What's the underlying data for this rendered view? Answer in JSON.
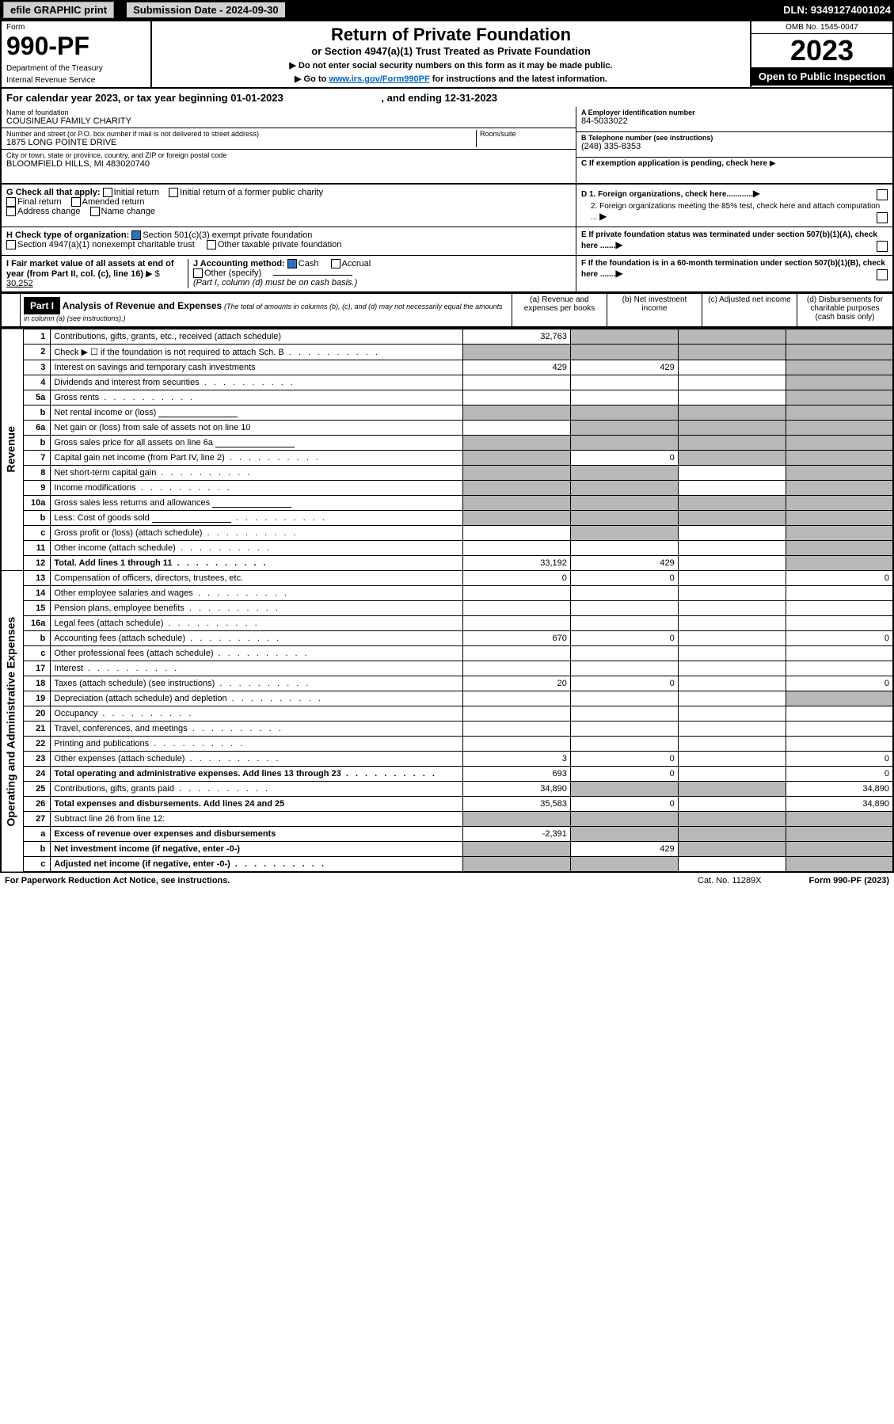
{
  "top_bar": {
    "print": "efile GRAPHIC print",
    "sub_label": "Submission Date - 2024-09-30",
    "dln": "DLN: 93491274001024"
  },
  "header": {
    "form_label": "Form",
    "form_no": "990-PF",
    "dept": "Department of the Treasury",
    "irs": "Internal Revenue Service",
    "title": "Return of Private Foundation",
    "subtitle": "or Section 4947(a)(1) Trust Treated as Private Foundation",
    "note1": "▶ Do not enter social security numbers on this form as it may be made public.",
    "note2_pre": "▶ Go to ",
    "note2_link": "www.irs.gov/Form990PF",
    "note2_post": " for instructions and the latest information.",
    "omb": "OMB No. 1545-0047",
    "year": "2023",
    "open": "Open to Public Inspection"
  },
  "cal_year": {
    "text_pre": "For calendar year 2023, or tax year beginning ",
    "begin": "01-01-2023",
    "text_mid": " , and ending ",
    "end": "12-31-2023"
  },
  "info": {
    "name_label": "Name of foundation",
    "name": "COUSINEAU FAMILY CHARITY",
    "addr_label": "Number and street (or P.O. box number if mail is not delivered to street address)",
    "addr": "1875 LONG POINTE DRIVE",
    "room_label": "Room/suite",
    "city_label": "City or town, state or province, country, and ZIP or foreign postal code",
    "city": "BLOOMFIELD HILLS, MI  483020740",
    "ein_label": "A Employer identification number",
    "ein": "84-5033022",
    "phone_label": "B Telephone number (see instructions)",
    "phone": "(248) 335-8353",
    "c_label": "C If exemption application is pending, check here"
  },
  "section_g": {
    "label": "G Check all that apply:",
    "items": [
      "Initial return",
      "Initial return of a former public charity",
      "Final return",
      "Amended return",
      "Address change",
      "Name change"
    ]
  },
  "section_h": {
    "label": "H Check type of organization:",
    "opt1": "Section 501(c)(3) exempt private foundation",
    "opt2": "Section 4947(a)(1) nonexempt charitable trust",
    "opt3": "Other taxable private foundation"
  },
  "section_i": {
    "label": "I Fair market value of all assets at end of year (from Part II, col. (c), line 16)",
    "val": "30,252"
  },
  "section_j": {
    "label": "J Accounting method:",
    "cash": "Cash",
    "accrual": "Accrual",
    "other": "Other (specify)",
    "note": "(Part I, column (d) must be on cash basis.)"
  },
  "section_d": {
    "d1": "D 1. Foreign organizations, check here............",
    "d2": "2. Foreign organizations meeting the 85% test, check here and attach computation ..."
  },
  "section_e": "E  If private foundation status was terminated under section 507(b)(1)(A), check here .......",
  "section_f": "F  If the foundation is in a 60-month termination under section 507(b)(1)(B), check here .......",
  "part1": {
    "hdr": "Part I",
    "title": "Analysis of Revenue and Expenses",
    "note": "(The total of amounts in columns (b), (c), and (d) may not necessarily equal the amounts in column (a) (see instructions).)",
    "col_a": "(a) Revenue and expenses per books",
    "col_b": "(b) Net investment income",
    "col_c": "(c) Adjusted net income",
    "col_d": "(d) Disbursements for charitable purposes (cash basis only)"
  },
  "side_labels": {
    "revenue": "Revenue",
    "expenses": "Operating and Administrative Expenses"
  },
  "lines": [
    {
      "n": "1",
      "desc": "Contributions, gifts, grants, etc., received (attach schedule)",
      "a": "32,763",
      "b": "",
      "c": "",
      "d": "",
      "shade_b": true,
      "shade_c": true,
      "shade_d": true
    },
    {
      "n": "2",
      "desc": "Check ▶ ☐ if the foundation is not required to attach Sch. B",
      "a": "",
      "b": "",
      "c": "",
      "d": "",
      "shade_a": true,
      "shade_b": true,
      "shade_c": true,
      "shade_d": true,
      "dots": true
    },
    {
      "n": "3",
      "desc": "Interest on savings and temporary cash investments",
      "a": "429",
      "b": "429",
      "c": "",
      "d": "",
      "shade_d": true
    },
    {
      "n": "4",
      "desc": "Dividends and interest from securities",
      "a": "",
      "b": "",
      "c": "",
      "d": "",
      "shade_d": true,
      "dots": true
    },
    {
      "n": "5a",
      "desc": "Gross rents",
      "a": "",
      "b": "",
      "c": "",
      "d": "",
      "shade_d": true,
      "dots": true
    },
    {
      "n": "b",
      "desc": "Net rental income or (loss)",
      "a": "",
      "b": "",
      "c": "",
      "d": "",
      "shade_a": true,
      "shade_b": true,
      "shade_c": true,
      "shade_d": true,
      "inline_blank": true
    },
    {
      "n": "6a",
      "desc": "Net gain or (loss) from sale of assets not on line 10",
      "a": "",
      "b": "",
      "c": "",
      "d": "",
      "shade_b": true,
      "shade_c": true,
      "shade_d": true
    },
    {
      "n": "b",
      "desc": "Gross sales price for all assets on line 6a",
      "a": "",
      "b": "",
      "c": "",
      "d": "",
      "shade_a": true,
      "shade_b": true,
      "shade_c": true,
      "shade_d": true,
      "inline_blank": true
    },
    {
      "n": "7",
      "desc": "Capital gain net income (from Part IV, line 2)",
      "a": "",
      "b": "0",
      "c": "",
      "d": "",
      "shade_a": true,
      "shade_c": true,
      "shade_d": true,
      "dots": true
    },
    {
      "n": "8",
      "desc": "Net short-term capital gain",
      "a": "",
      "b": "",
      "c": "",
      "d": "",
      "shade_a": true,
      "shade_b": true,
      "shade_d": true,
      "dots": true
    },
    {
      "n": "9",
      "desc": "Income modifications",
      "a": "",
      "b": "",
      "c": "",
      "d": "",
      "shade_a": true,
      "shade_b": true,
      "shade_d": true,
      "dots": true
    },
    {
      "n": "10a",
      "desc": "Gross sales less returns and allowances",
      "a": "",
      "b": "",
      "c": "",
      "d": "",
      "shade_a": true,
      "shade_b": true,
      "shade_c": true,
      "shade_d": true,
      "inline_blank": true
    },
    {
      "n": "b",
      "desc": "Less: Cost of goods sold",
      "a": "",
      "b": "",
      "c": "",
      "d": "",
      "shade_a": true,
      "shade_b": true,
      "shade_c": true,
      "shade_d": true,
      "inline_blank": true,
      "dots": true
    },
    {
      "n": "c",
      "desc": "Gross profit or (loss) (attach schedule)",
      "a": "",
      "b": "",
      "c": "",
      "d": "",
      "shade_b": true,
      "shade_d": true,
      "dots": true
    },
    {
      "n": "11",
      "desc": "Other income (attach schedule)",
      "a": "",
      "b": "",
      "c": "",
      "d": "",
      "shade_d": true,
      "dots": true
    },
    {
      "n": "12",
      "desc": "Total. Add lines 1 through 11",
      "a": "33,192",
      "b": "429",
      "c": "",
      "d": "",
      "bold": true,
      "shade_d": true,
      "dots": true
    },
    {
      "n": "13",
      "desc": "Compensation of officers, directors, trustees, etc.",
      "a": "0",
      "b": "0",
      "c": "",
      "d": "0"
    },
    {
      "n": "14",
      "desc": "Other employee salaries and wages",
      "a": "",
      "b": "",
      "c": "",
      "d": "",
      "dots": true
    },
    {
      "n": "15",
      "desc": "Pension plans, employee benefits",
      "a": "",
      "b": "",
      "c": "",
      "d": "",
      "dots": true
    },
    {
      "n": "16a",
      "desc": "Legal fees (attach schedule)",
      "a": "",
      "b": "",
      "c": "",
      "d": "",
      "dots": true
    },
    {
      "n": "b",
      "desc": "Accounting fees (attach schedule)",
      "a": "670",
      "b": "0",
      "c": "",
      "d": "0",
      "dots": true
    },
    {
      "n": "c",
      "desc": "Other professional fees (attach schedule)",
      "a": "",
      "b": "",
      "c": "",
      "d": "",
      "dots": true
    },
    {
      "n": "17",
      "desc": "Interest",
      "a": "",
      "b": "",
      "c": "",
      "d": "",
      "dots": true
    },
    {
      "n": "18",
      "desc": "Taxes (attach schedule) (see instructions)",
      "a": "20",
      "b": "0",
      "c": "",
      "d": "0",
      "dots": true
    },
    {
      "n": "19",
      "desc": "Depreciation (attach schedule) and depletion",
      "a": "",
      "b": "",
      "c": "",
      "d": "",
      "shade_d": true,
      "dots": true
    },
    {
      "n": "20",
      "desc": "Occupancy",
      "a": "",
      "b": "",
      "c": "",
      "d": "",
      "dots": true
    },
    {
      "n": "21",
      "desc": "Travel, conferences, and meetings",
      "a": "",
      "b": "",
      "c": "",
      "d": "",
      "dots": true
    },
    {
      "n": "22",
      "desc": "Printing and publications",
      "a": "",
      "b": "",
      "c": "",
      "d": "",
      "dots": true
    },
    {
      "n": "23",
      "desc": "Other expenses (attach schedule)",
      "a": "3",
      "b": "0",
      "c": "",
      "d": "0",
      "dots": true
    },
    {
      "n": "24",
      "desc": "Total operating and administrative expenses. Add lines 13 through 23",
      "a": "693",
      "b": "0",
      "c": "",
      "d": "0",
      "bold": true,
      "dots": true
    },
    {
      "n": "25",
      "desc": "Contributions, gifts, grants paid",
      "a": "34,890",
      "b": "",
      "c": "",
      "d": "34,890",
      "shade_b": true,
      "shade_c": true,
      "dots": true
    },
    {
      "n": "26",
      "desc": "Total expenses and disbursements. Add lines 24 and 25",
      "a": "35,583",
      "b": "0",
      "c": "",
      "d": "34,890",
      "bold": true
    },
    {
      "n": "27",
      "desc": "Subtract line 26 from line 12:",
      "a": "",
      "b": "",
      "c": "",
      "d": "",
      "shade_a": true,
      "shade_b": true,
      "shade_c": true,
      "shade_d": true
    },
    {
      "n": "a",
      "desc": "Excess of revenue over expenses and disbursements",
      "a": "-2,391",
      "b": "",
      "c": "",
      "d": "",
      "bold": true,
      "shade_b": true,
      "shade_c": true,
      "shade_d": true
    },
    {
      "n": "b",
      "desc": "Net investment income (if negative, enter -0-)",
      "a": "",
      "b": "429",
      "c": "",
      "d": "",
      "bold": true,
      "shade_a": true,
      "shade_c": true,
      "shade_d": true
    },
    {
      "n": "c",
      "desc": "Adjusted net income (if negative, enter -0-)",
      "a": "",
      "b": "",
      "c": "",
      "d": "",
      "bold": true,
      "shade_a": true,
      "shade_b": true,
      "shade_d": true,
      "dots": true
    }
  ],
  "footer": {
    "pra": "For Paperwork Reduction Act Notice, see instructions.",
    "cat": "Cat. No. 11289X",
    "form": "Form 990-PF (2023)"
  }
}
